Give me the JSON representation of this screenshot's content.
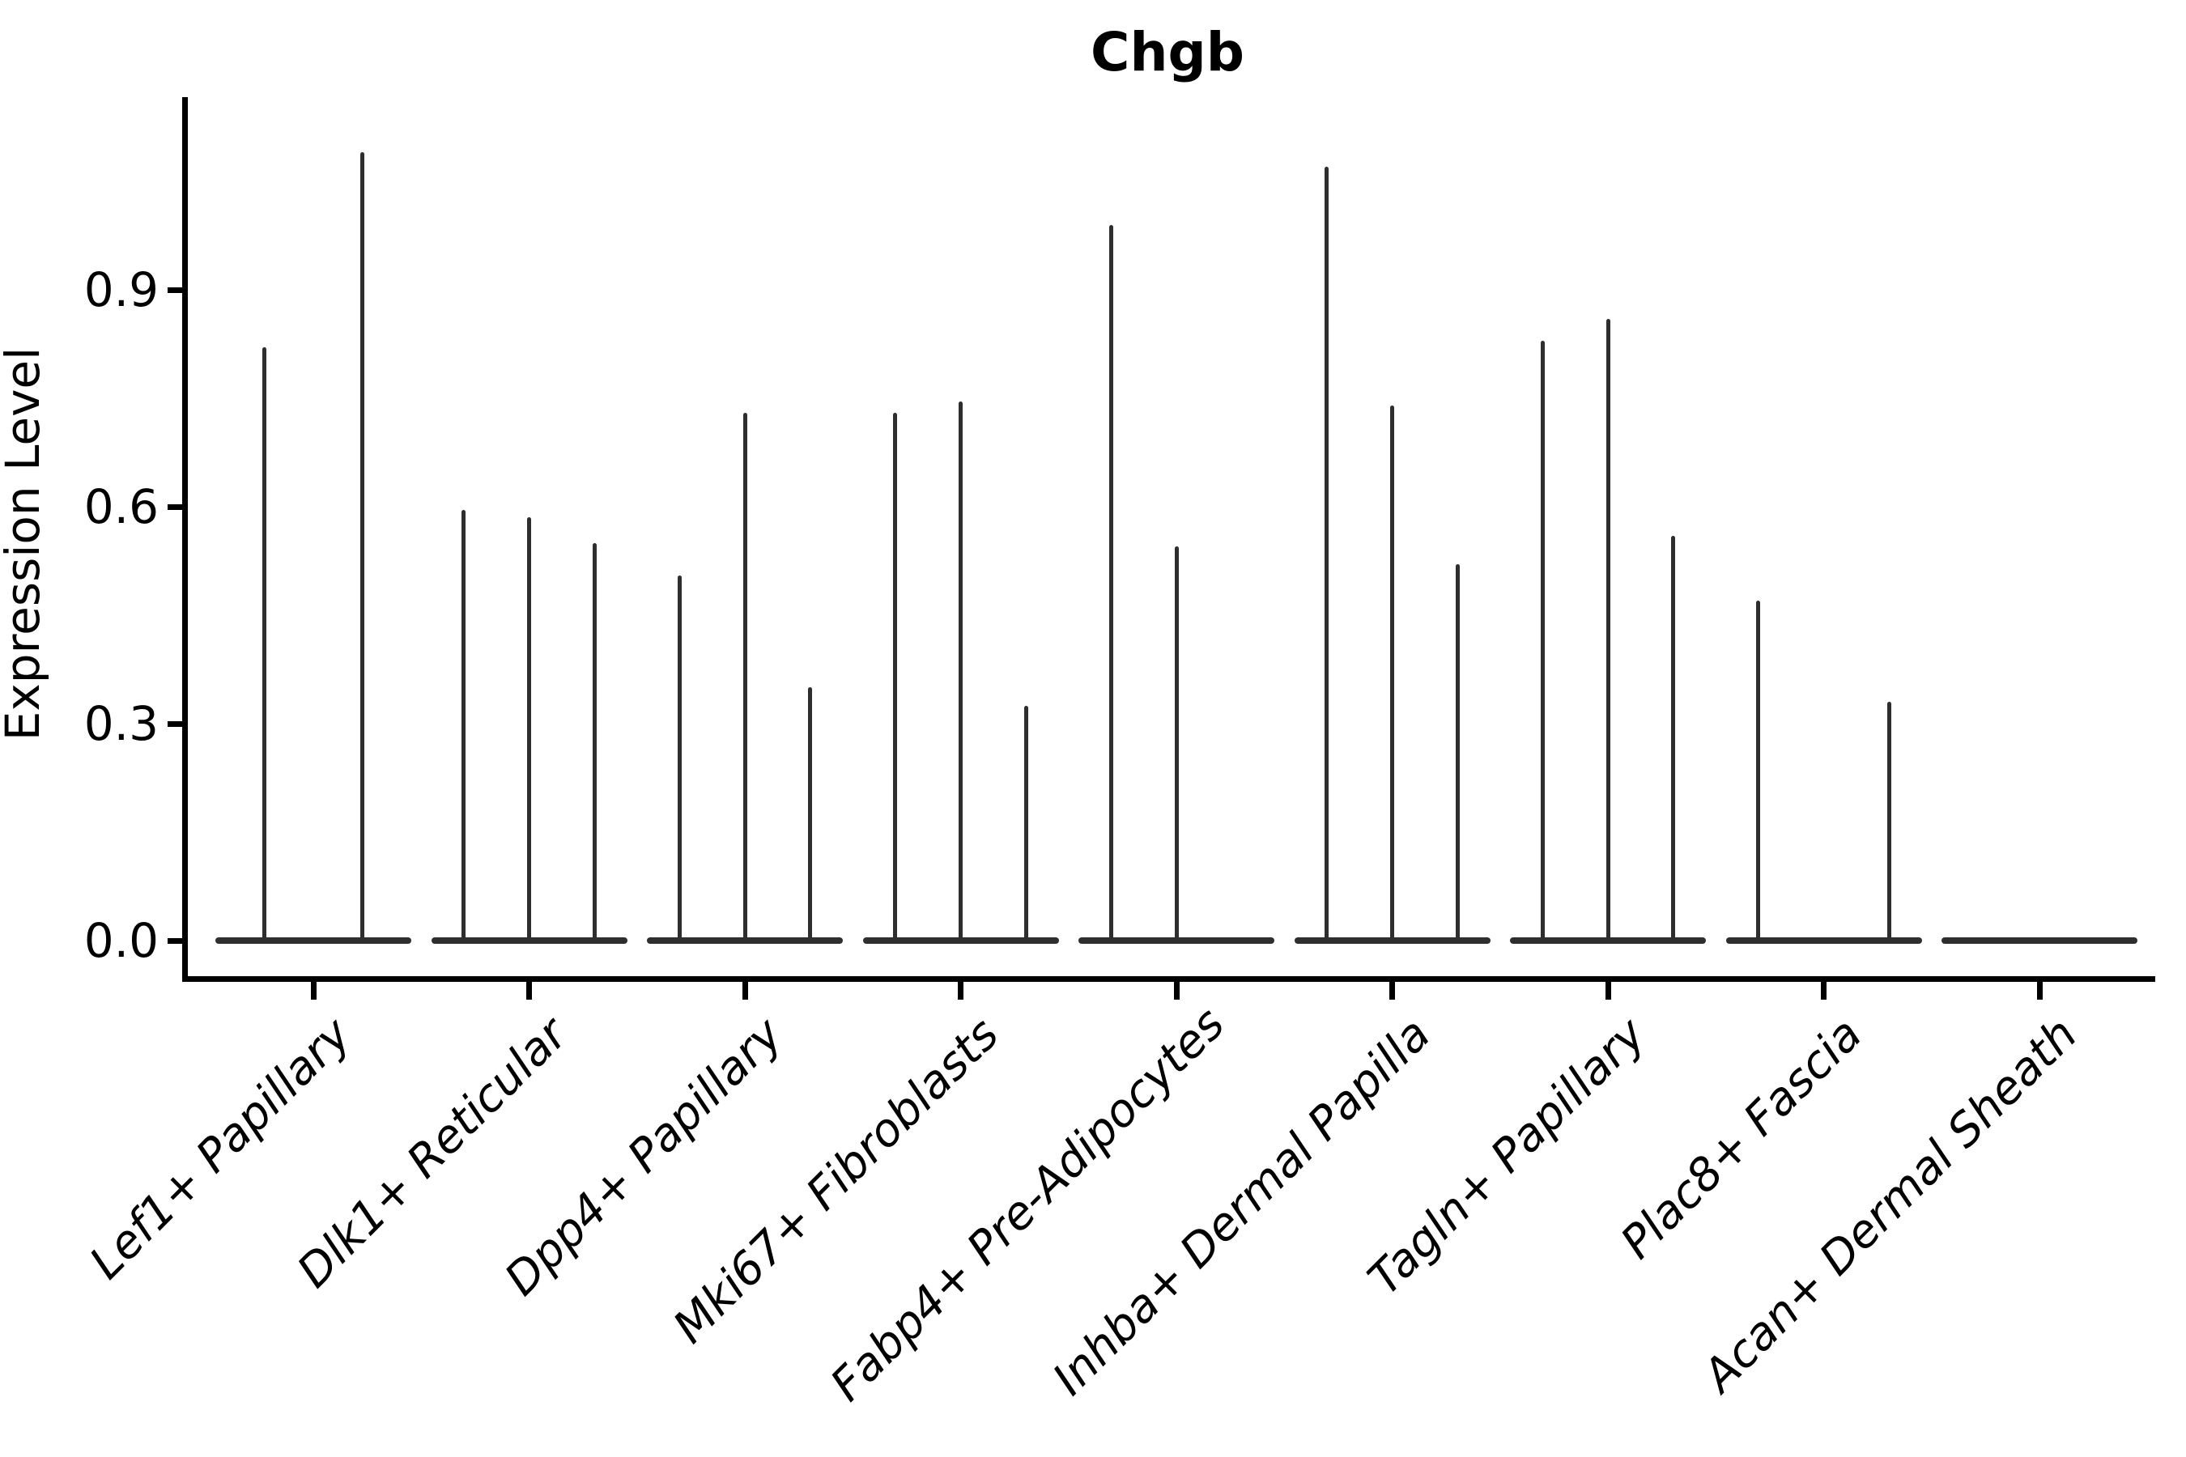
{
  "chart_data": {
    "type": "violin",
    "title": "Chgb",
    "ylabel": "Expression Level",
    "xlabel": "",
    "yticks": [
      0.0,
      0.3,
      0.6,
      0.9
    ],
    "ylim": [
      -0.053,
      1.167
    ],
    "grid": false,
    "legend": "none",
    "violin_color": "#2e2e2e",
    "axis_color": "#000000",
    "background_color": "#ffffff",
    "note": "Each category holds 2-3 thin sub-violins; 'spikes' are the max expression density peaks per sub-violin (0 = flat violin at baseline)",
    "categories": [
      {
        "label": "Lef1+ Papillary",
        "spikes": [
          0.82,
          1.09
        ]
      },
      {
        "label": "Dlk1+ Reticular",
        "spikes": [
          0.595,
          0.585,
          0.55
        ]
      },
      {
        "label": "Dpp4+ Papillary",
        "spikes": [
          0.505,
          0.73,
          0.35
        ]
      },
      {
        "label": "Mki67+ Fibroblasts",
        "spikes": [
          0.73,
          0.745,
          0.325
        ]
      },
      {
        "label": "Fabp4+ Pre-Adipocytes",
        "spikes": [
          0.99,
          0.545,
          0
        ]
      },
      {
        "label": "Inhba+ Dermal Papilla",
        "spikes": [
          1.07,
          0.74,
          0.52
        ]
      },
      {
        "label": "Tagln+ Papillary",
        "spikes": [
          0.83,
          0.86,
          0.56
        ]
      },
      {
        "label": "Plac8+ Fascia",
        "spikes": [
          0.47,
          0,
          0.33
        ]
      },
      {
        "label": "Acan+ Dermal Sheath",
        "spikes": [
          0
        ]
      }
    ]
  }
}
